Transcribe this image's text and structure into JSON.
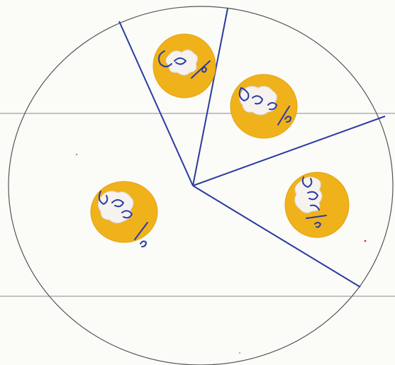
{
  "drawing": {
    "paper_color": "#fbfbf8",
    "ruled_line_color": "#8a8a8a",
    "circle_outline_color": "#555555",
    "divider_color": "#2a3aa0",
    "token_color": "#f0b21a",
    "token_edge_color": "#e3a410",
    "ink_color": "#2b3aa6",
    "shapes": [
      "outer-circle",
      "sector-dividers",
      "yellow-tokens",
      "handwritten-fraction-marks"
    ]
  }
}
